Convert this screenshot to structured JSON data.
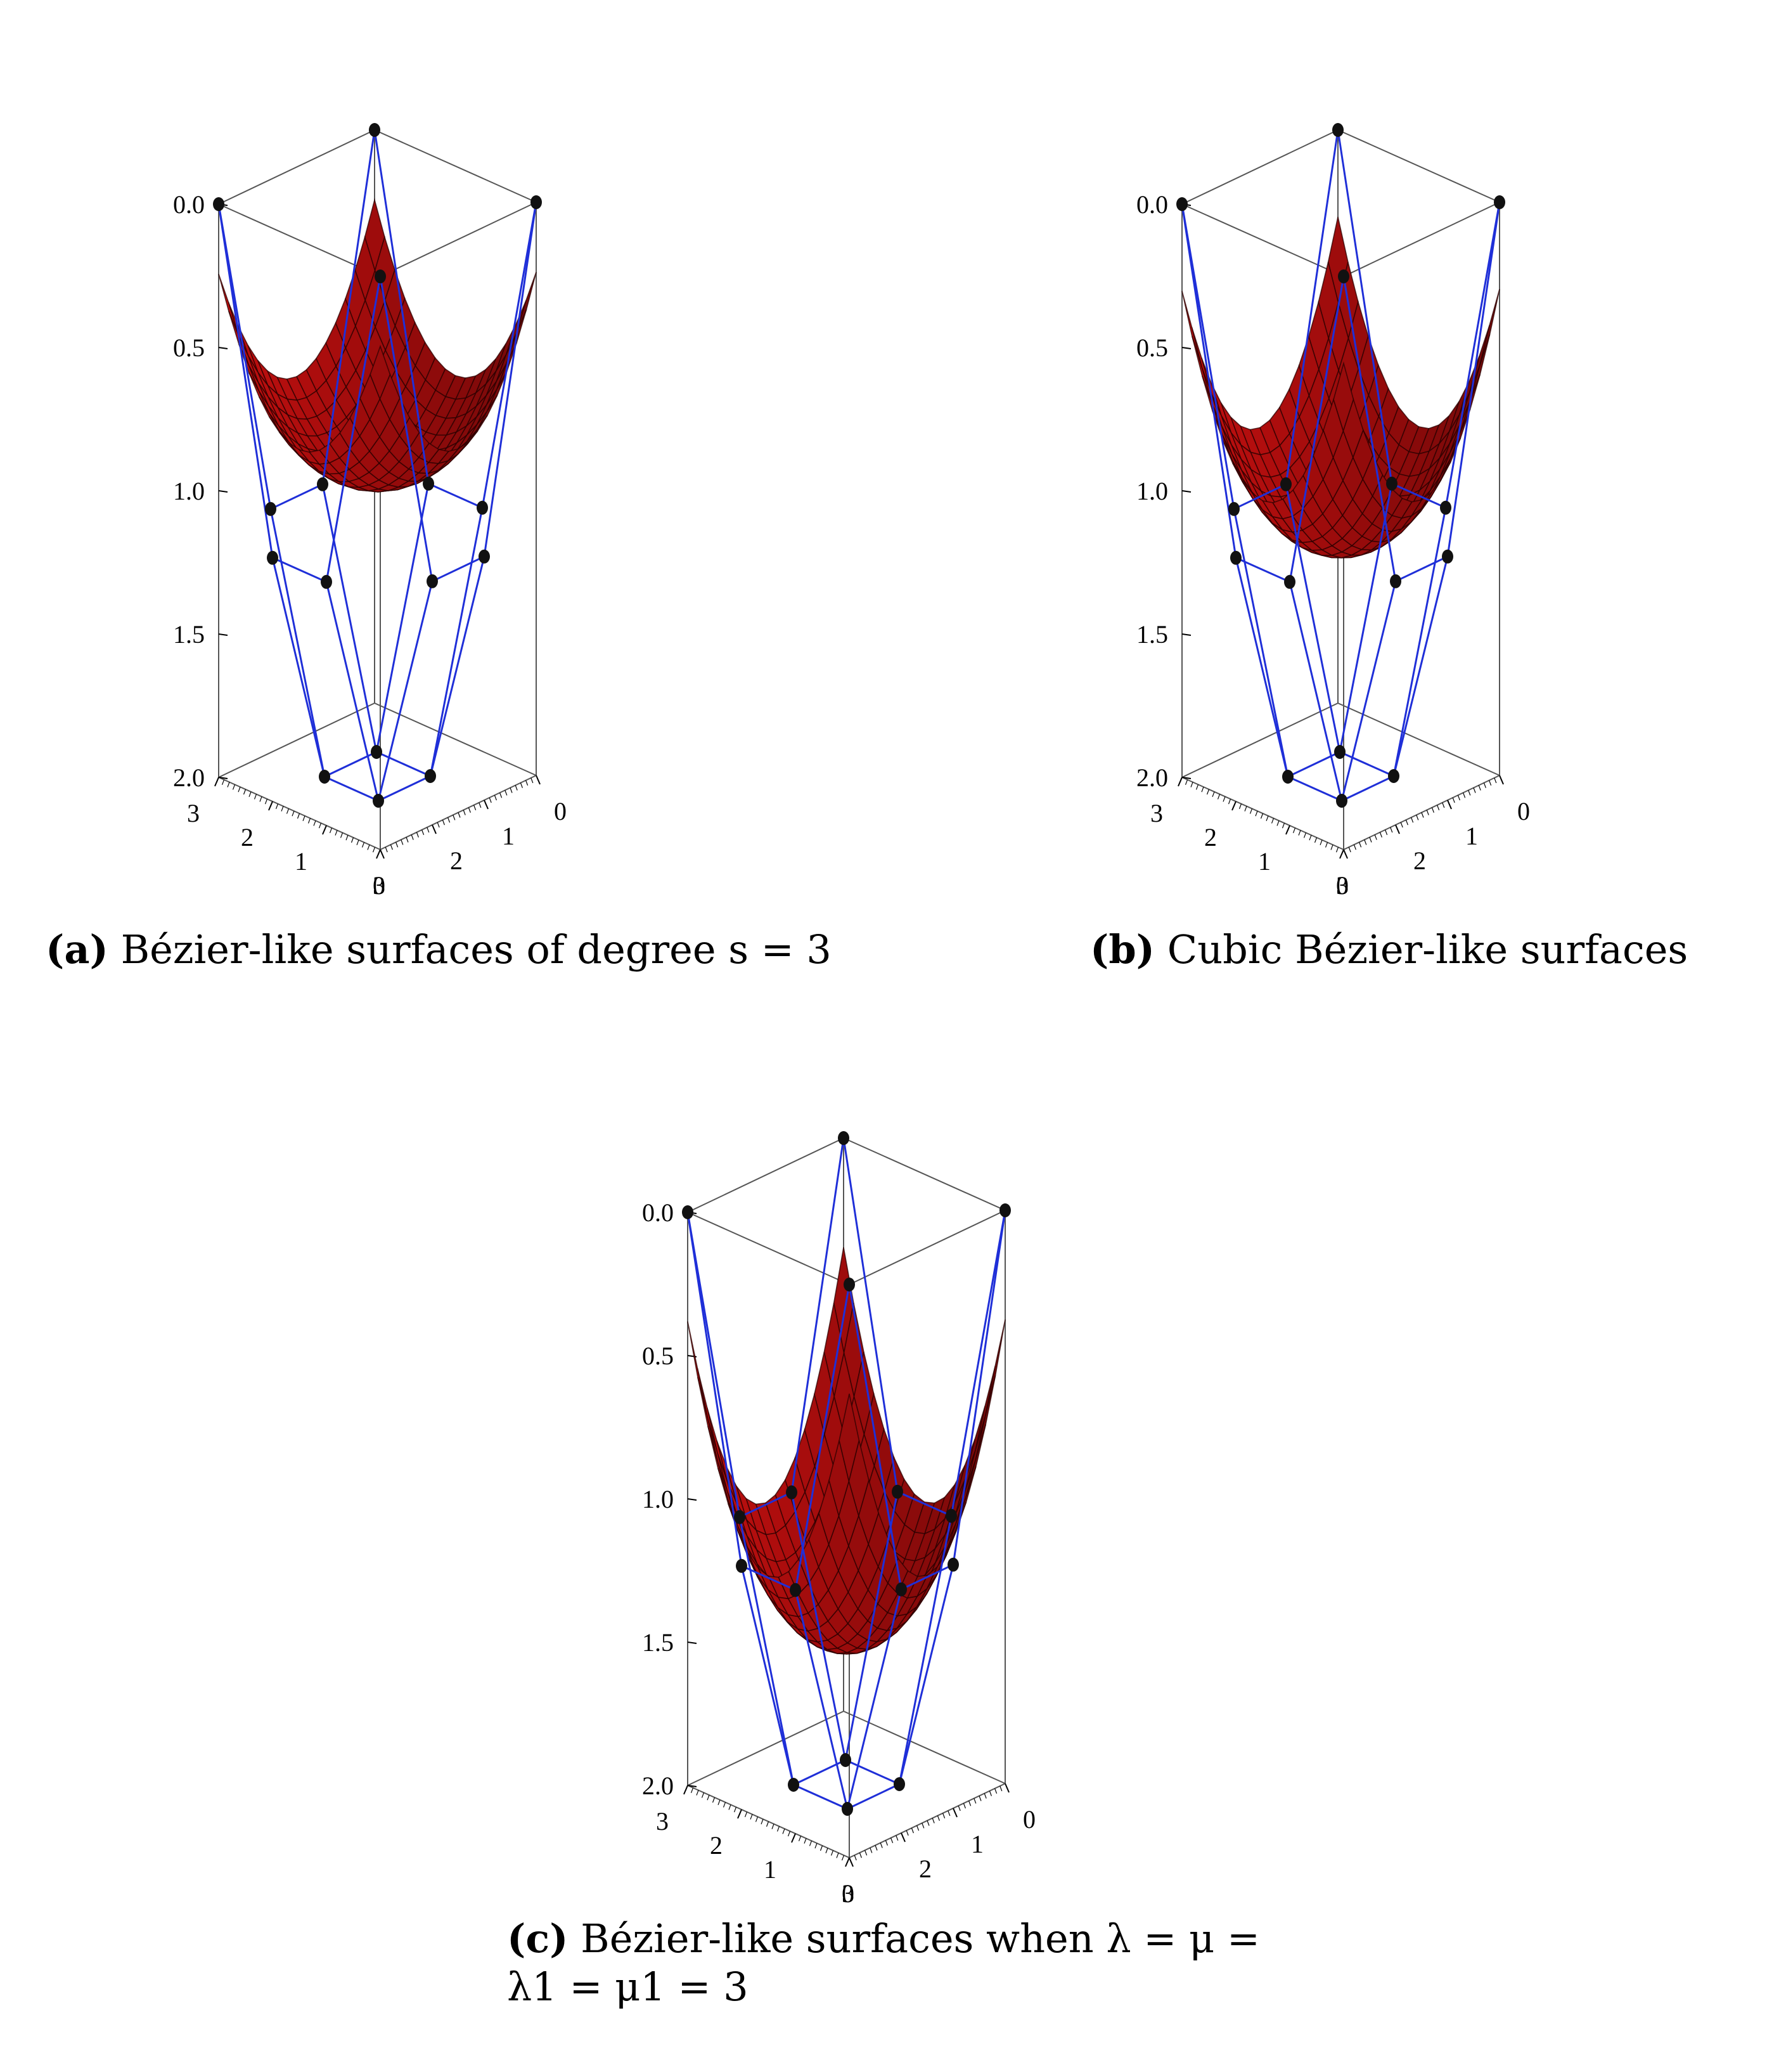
{
  "figure": {
    "panels": [
      {
        "id": "a",
        "caption_label": "(a)",
        "caption_text": "Bézier-like surfaces of degree s = 3",
        "depth_scale": 0.78,
        "net_mid_z": 1.15
      },
      {
        "id": "b",
        "caption_label": "(b)",
        "caption_text": "Cubic Bézier-like surfaces",
        "depth_scale": 0.97,
        "net_mid_z": 1.15
      },
      {
        "id": "c",
        "caption_label": "(c)",
        "caption_text": "Bézier-like surfaces when λ = μ =",
        "caption_text_line2": "λ1 = μ1 = 3",
        "depth_scale": 1.22,
        "net_mid_z": 1.15
      }
    ]
  },
  "chart_data": {
    "type": "3d-surface",
    "vertical_axis": {
      "ticks": [
        "0.0",
        "0.5",
        "1.0",
        "1.5",
        "2.0"
      ],
      "range": [
        0,
        2
      ]
    },
    "left_axis": {
      "ticks": [
        "3",
        "2",
        "1",
        "0"
      ],
      "range": [
        0,
        3
      ]
    },
    "right_axis": {
      "ticks": [
        "3",
        "2",
        "1",
        "0"
      ],
      "range": [
        0,
        3
      ]
    },
    "control_net": {
      "grid": [
        [
          0,
          1,
          2,
          3
        ],
        [
          0,
          1,
          2,
          3
        ]
      ],
      "z_values": [
        [
          0.0,
          1.15,
          1.15,
          0.0
        ],
        [
          1.15,
          2.0,
          2.0,
          1.15
        ],
        [
          1.15,
          2.0,
          2.0,
          1.15
        ],
        [
          0.0,
          1.15,
          1.15,
          0.0
        ]
      ]
    },
    "colors": {
      "surface": "#d01010",
      "net": "#1f2fd8",
      "points": "#111111",
      "box": "#555555"
    }
  }
}
